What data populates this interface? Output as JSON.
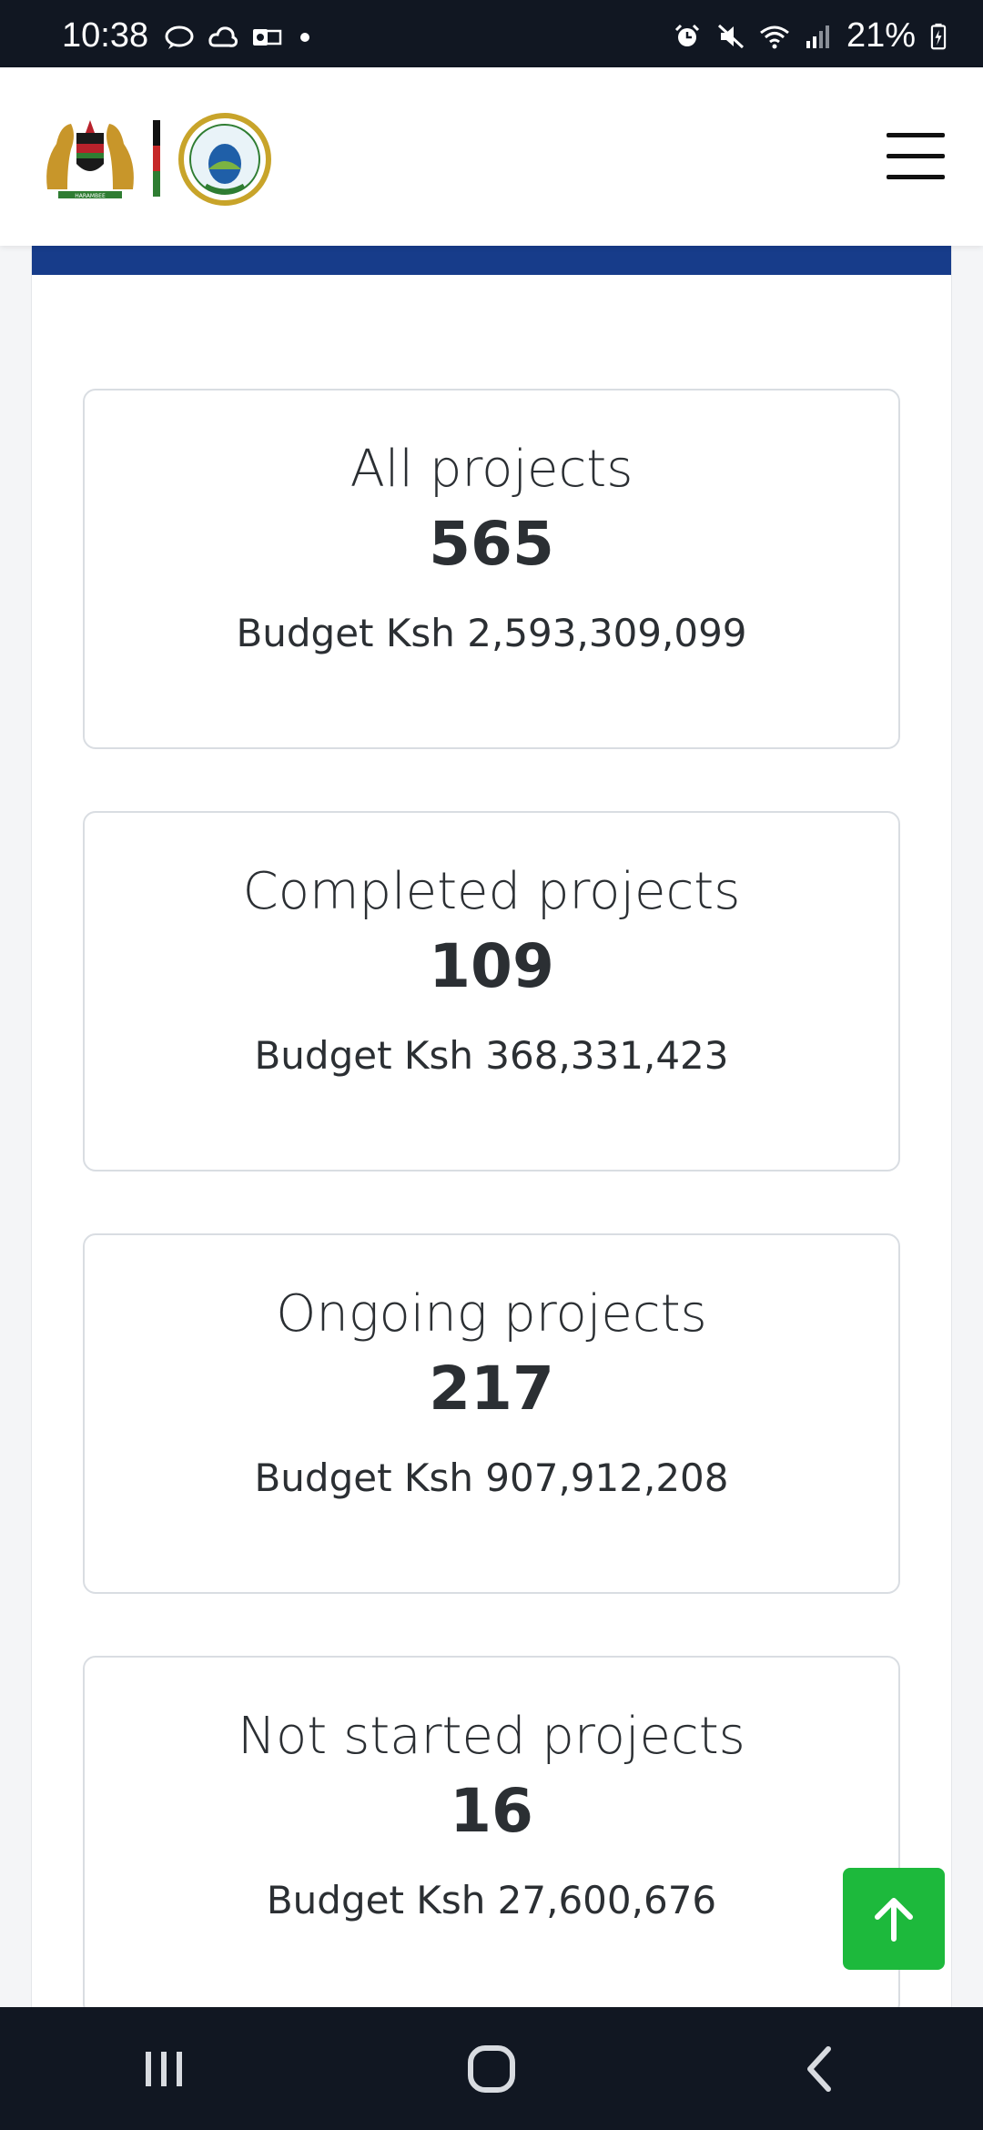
{
  "status_bar": {
    "time": "10:38",
    "battery": "21%",
    "left_icons": [
      "chat-bubble-icon",
      "cloud-icon",
      "outlook-icon",
      "dot-icon"
    ],
    "right_icons": [
      "alarm-icon",
      "mute-icon",
      "wifi-icon",
      "signal-icon",
      "battery-icon"
    ]
  },
  "header": {
    "logos": [
      "kenya-coat-of-arms",
      "county-seal"
    ],
    "menu_icon": "hamburger-menu-icon"
  },
  "accent_colors": {
    "header_bar": "#173c8a",
    "back_to_top": "#1db93c"
  },
  "cards": [
    {
      "title": "All projects",
      "count": "565",
      "budget": "Budget Ksh 2,593,309,099"
    },
    {
      "title": "Completed projects",
      "count": "109",
      "budget": "Budget Ksh 368,331,423"
    },
    {
      "title": "Ongoing projects",
      "count": "217",
      "budget": "Budget Ksh 907,912,208"
    },
    {
      "title": "Not started projects",
      "count": "16",
      "budget": "Budget Ksh 27,600,676"
    }
  ],
  "back_to_top_icon": "arrow-up-icon",
  "nav_bar": [
    "recents-icon",
    "home-icon",
    "back-icon"
  ]
}
